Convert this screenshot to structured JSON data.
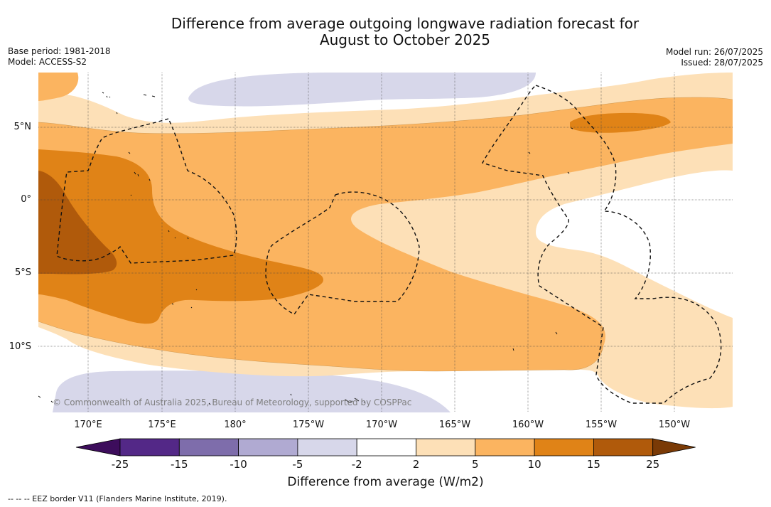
{
  "title_line1": "Difference from average outgoing longwave radiation forecast for",
  "title_line2": "August to October 2025",
  "base_period": "Base period: 1981-2018",
  "model": "Model: ACCESS-S2",
  "model_run": "Model run: 26/07/2025",
  "issued": "Issued: 28/07/2025",
  "lat_labels": [
    "5°N",
    "0°",
    "5°S",
    "10°S"
  ],
  "lon_labels": [
    "170°E",
    "175°E",
    "180°",
    "175°W",
    "170°W",
    "165°W",
    "160°W",
    "155°W",
    "150°W"
  ],
  "copyright": "© Commonwealth of Australia 2025, Bureau of Meteorology, supported by COSPPac",
  "colorbar": {
    "label": "Difference from average (W/m2)",
    "ticks": [
      "-25",
      "-15",
      "-10",
      "-5",
      "-2",
      "2",
      "5",
      "10",
      "15",
      "25"
    ],
    "colors": {
      "below_-25": "#3d0d5c",
      "-25_-15": "#532887",
      "-15_-10": "#7e6dab",
      "-10_-5": "#b0aad2",
      "-5_-2": "#d7d7ea",
      "-2_2": "#ffffff",
      "2_5": "#fde0b7",
      "5_10": "#fbb460",
      "10_15": "#e08317",
      "15_25": "#b05a0b",
      "above_25": "#7a3a06"
    }
  },
  "footnote": "--  --  -- EEZ border V11 (Flanders Marine Institute, 2019)."
}
